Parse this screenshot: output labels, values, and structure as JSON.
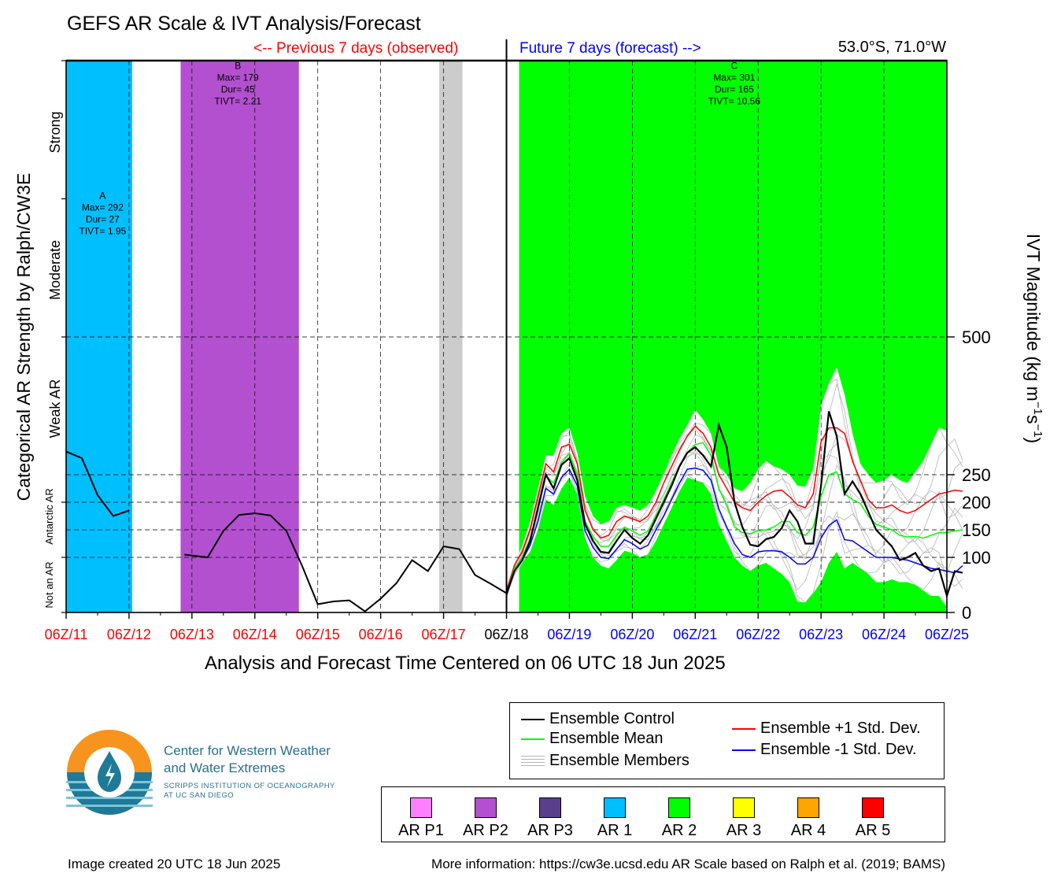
{
  "header": {
    "title": "GEFS AR Scale & IVT Analysis/Forecast",
    "previous_label": "<-- Previous 7 days (observed)",
    "future_label": "Future 7 days (forecast) -->",
    "location": "53.0°S, 71.0°W"
  },
  "chart_data": {
    "type": "line",
    "x_tick_labels": [
      "06Z/11",
      "06Z/12",
      "06Z/13",
      "06Z/14",
      "06Z/15",
      "06Z/16",
      "06Z/17",
      "06Z/18",
      "06Z/19",
      "06Z/20",
      "06Z/21",
      "06Z/22",
      "06Z/23",
      "06Z/24",
      "06Z/25"
    ],
    "x_tick_colors": [
      "#ff0000",
      "#ff0000",
      "#ff0000",
      "#ff0000",
      "#ff0000",
      "#ff0000",
      "#ff0000",
      "#000000",
      "#0000ff",
      "#0000ff",
      "#0000ff",
      "#0000ff",
      "#0000ff",
      "#0000ff",
      "#0000ff"
    ],
    "xlabel": "Analysis and Forecast Time Centered on 06 UTC 18 Jun 2025",
    "xlim_days": [
      0,
      14
    ],
    "ylabel_left": "Categorical AR Strength by Ralph/CW3E",
    "ylabel_right": "IVT Magnitude (kg m",
    "ylabel_right_sup1": "−1",
    "ylabel_right_mid": "s",
    "ylabel_right_sup2": "−1",
    "ylabel_right_end": ")",
    "y_tick_values": [
      0,
      100,
      150,
      200,
      250,
      500
    ],
    "y_tick_labels": [
      "0",
      "100",
      "150",
      "200",
      "250",
      "500"
    ],
    "ylim": [
      0,
      1000
    ],
    "category_labels": [
      "Not an AR",
      "Antarctic AR",
      "Weak AR",
      "Moderate",
      "Strong"
    ],
    "ar_events": [
      {
        "label": "A",
        "start": 0.0,
        "end": 1.05,
        "color": "#00bfff",
        "max": "Max= 292",
        "dur": "Dur= 27",
        "tivt": "TIVT= 1.95",
        "text_x": 0.58,
        "text_ivt": 750
      },
      {
        "label": "B",
        "start": 1.82,
        "end": 3.7,
        "color": "#b350d0",
        "max": "Max= 179",
        "dur": "Dur= 45",
        "tivt": "TIVT= 2.21",
        "text_x": 2.73,
        "text_ivt": 985
      },
      {
        "label": "C",
        "start": 7.2,
        "end": 14.0,
        "color": "#00ff00",
        "max": "Max= 301",
        "dur": "Dur= 165",
        "tivt": "TIVT= 10.56",
        "text_x": 10.62,
        "text_ivt": 985
      }
    ],
    "gray_band": {
      "start": 5.93,
      "end": 6.3,
      "color": "#cccccc"
    },
    "observed_segments": [
      {
        "x": [
          0,
          0.25,
          0.5,
          0.75,
          1.0
        ],
        "y": [
          292,
          280,
          213,
          175,
          185
        ]
      },
      {
        "x": [
          1.88,
          2.25,
          2.5,
          2.75,
          3.0,
          3.25,
          3.5,
          3.75,
          4.0,
          4.25,
          4.5,
          4.75,
          5.0,
          5.25,
          5.5,
          5.75,
          6.0,
          6.25,
          6.5,
          6.75,
          7.0
        ],
        "y": [
          105,
          100,
          148,
          177,
          180,
          176,
          148,
          85,
          15,
          20,
          22,
          2,
          25,
          53,
          95,
          75,
          120,
          115,
          68,
          52,
          35
        ]
      }
    ],
    "forecast_x_start": 7.0,
    "forecast_x_step": 0.125,
    "series": [
      {
        "name": "Ensemble Control",
        "color": "#000000",
        "values": [
          35,
          75,
          95,
          130,
          190,
          250,
          225,
          268,
          280,
          240,
          160,
          130,
          110,
          108,
          130,
          150,
          135,
          125,
          140,
          170,
          200,
          230,
          265,
          290,
          300,
          285,
          265,
          340,
          300,
          200,
          155,
          123,
          120,
          133,
          137,
          153,
          185,
          165,
          125,
          125,
          230,
          365,
          320,
          215,
          238,
          215,
          183,
          150,
          135,
          120,
          95,
          100,
          108,
          85,
          75,
          80,
          30,
          75,
          72
        ]
      },
      {
        "name": "Ensemble Mean",
        "color": "#00ff00",
        "values": [
          35,
          80,
          100,
          135,
          185,
          248,
          235,
          272,
          288,
          250,
          165,
          138,
          120,
          120,
          140,
          155,
          148,
          140,
          148,
          175,
          205,
          235,
          265,
          290,
          305,
          308,
          285,
          225,
          195,
          155,
          145,
          143,
          148,
          150,
          155,
          165,
          165,
          145,
          140,
          155,
          210,
          250,
          255,
          215,
          205,
          198,
          175,
          160,
          155,
          150,
          140,
          137,
          138,
          135,
          140,
          145,
          145,
          148,
          150
        ]
      },
      {
        "name": "Ensemble +1 Std. Dev.",
        "color": "#ff0000",
        "values": [
          40,
          85,
          110,
          150,
          210,
          270,
          255,
          300,
          305,
          270,
          185,
          150,
          135,
          140,
          165,
          175,
          170,
          165,
          175,
          200,
          235,
          265,
          295,
          320,
          338,
          325,
          300,
          250,
          225,
          200,
          190,
          185,
          200,
          212,
          220,
          222,
          210,
          195,
          190,
          215,
          310,
          335,
          335,
          325,
          275,
          240,
          205,
          190,
          190,
          195,
          185,
          180,
          185,
          195,
          205,
          215,
          218,
          222,
          220
        ]
      },
      {
        "name": "Ensemble -1 Std. Dev.",
        "color": "#0000ff",
        "values": [
          30,
          75,
          95,
          122,
          165,
          225,
          215,
          245,
          260,
          230,
          148,
          118,
          100,
          98,
          115,
          132,
          125,
          115,
          122,
          150,
          175,
          205,
          235,
          260,
          262,
          258,
          240,
          188,
          155,
          125,
          105,
          100,
          110,
          112,
          112,
          110,
          100,
          88,
          88,
          100,
          135,
          158,
          168,
          132,
          130,
          120,
          110,
          100,
          100,
          100,
          97,
          95,
          90,
          85,
          80,
          78,
          75,
          72,
          85
        ]
      }
    ],
    "envelope_upper": [
      40,
      90,
      120,
      165,
      225,
      285,
      285,
      325,
      335,
      290,
      210,
      175,
      160,
      165,
      190,
      195,
      190,
      185,
      195,
      220,
      250,
      285,
      315,
      340,
      368,
      350,
      325,
      265,
      250,
      225,
      220,
      235,
      260,
      275,
      265,
      260,
      250,
      230,
      228,
      260,
      375,
      415,
      445,
      395,
      325,
      270,
      250,
      235,
      240,
      250,
      240,
      235,
      255,
      275,
      305,
      335,
      330,
      345,
      330
    ],
    "envelope_lower": [
      28,
      65,
      90,
      110,
      150,
      205,
      195,
      225,
      245,
      215,
      135,
      100,
      85,
      80,
      95,
      112,
      108,
      100,
      105,
      130,
      160,
      190,
      220,
      245,
      240,
      235,
      215,
      160,
      130,
      100,
      85,
      75,
      85,
      90,
      80,
      70,
      55,
      20,
      18,
      35,
      55,
      90,
      110,
      80,
      90,
      80,
      70,
      55,
      55,
      60,
      55,
      55,
      50,
      40,
      30,
      30,
      10,
      20,
      30
    ],
    "legend": {
      "control": "Ensemble Control",
      "mean": "Ensemble Mean",
      "members": "Ensemble Members",
      "plus_std": "Ensemble +1 Std. Dev.",
      "minus_std": "Ensemble -1 Std. Dev."
    },
    "grid": "dashed"
  },
  "categories_legend": [
    {
      "label": "AR P1",
      "color": "#ff80ff"
    },
    {
      "label": "AR P2",
      "color": "#b350d0"
    },
    {
      "label": "AR P3",
      "color": "#5a3f8c"
    },
    {
      "label": "AR 1",
      "color": "#00bfff"
    },
    {
      "label": "AR 2",
      "color": "#00ff00"
    },
    {
      "label": "AR 3",
      "color": "#ffff00"
    },
    {
      "label": "AR 4",
      "color": "#ffa500"
    },
    {
      "label": "AR 5",
      "color": "#ff0000"
    }
  ],
  "logo": {
    "line1": "Center for Western Weather",
    "line2": "and Water Extremes",
    "line3": "SCRIPPS INSTITUTION OF OCEANOGRAPHY",
    "line4": "AT UC SAN DIEGO",
    "orange": "#f7941d",
    "teal": "#1f7a99"
  },
  "footer": {
    "created": "Image created 20 UTC 18 Jun 2025",
    "info": "More information: https://cw3e.ucsd.edu AR Scale based on Ralph et al. (2019; BAMS)"
  }
}
